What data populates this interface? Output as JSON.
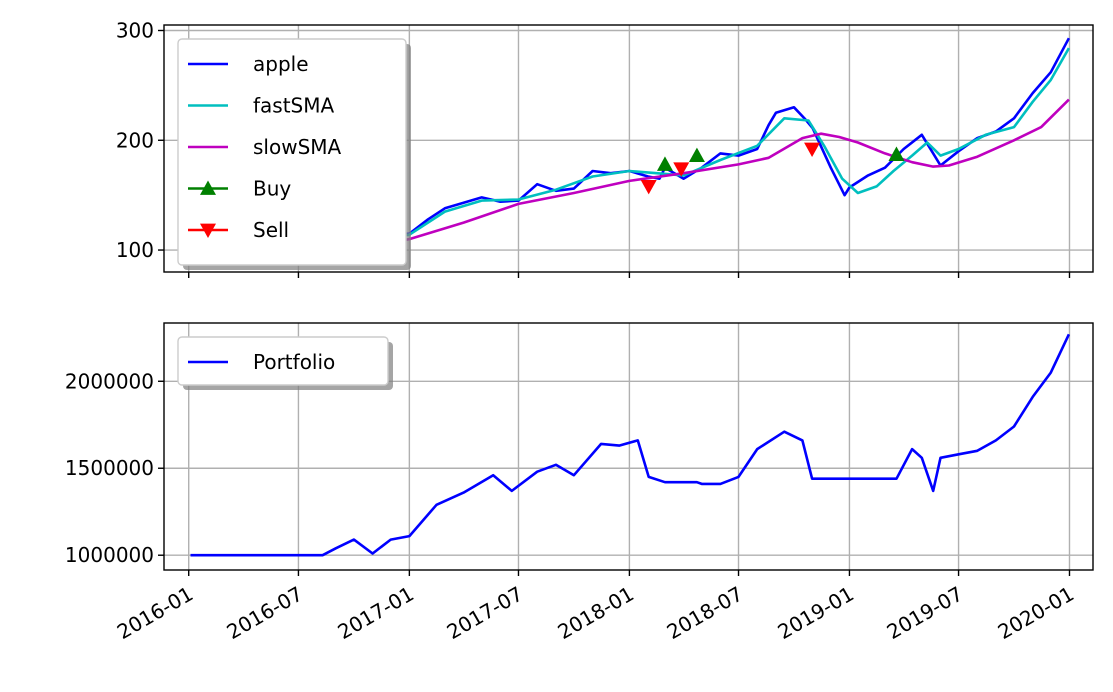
{
  "chart_data": [
    {
      "type": "line",
      "title": "",
      "xlabel": "",
      "ylabel": "",
      "ylim": [
        80,
        305
      ],
      "yticks": [
        100,
        200,
        300
      ],
      "ytick_labels": [
        "100",
        "200",
        "300"
      ],
      "xlim": [
        "2015-11-21",
        "2020-02-09"
      ],
      "x_shared_with_lower": true,
      "grid": true,
      "legend": {
        "placement": "upper left",
        "entries": [
          "apple",
          "fastSMA",
          "slowSMA",
          "Buy",
          "Sell"
        ]
      },
      "series": [
        {
          "name": "apple",
          "color": "#0000ff",
          "x": [
            "2016-01-04",
            "2016-02-01",
            "2016-03-01",
            "2016-04-01",
            "2016-05-01",
            "2016-06-01",
            "2016-07-01",
            "2016-08-01",
            "2016-09-01",
            "2016-10-01",
            "2016-11-01",
            "2016-12-01",
            "2017-01-01",
            "2017-02-01",
            "2017-03-01",
            "2017-04-01",
            "2017-05-01",
            "2017-06-01",
            "2017-07-01",
            "2017-08-01",
            "2017-09-01",
            "2017-10-01",
            "2017-11-01",
            "2017-12-01",
            "2018-01-01",
            "2018-02-01",
            "2018-02-20",
            "2018-03-01",
            "2018-04-01",
            "2018-05-01",
            "2018-06-01",
            "2018-07-01",
            "2018-08-01",
            "2018-08-20",
            "2018-09-01",
            "2018-10-01",
            "2018-10-20",
            "2018-11-01",
            "2018-12-01",
            "2018-12-24",
            "2019-01-01",
            "2019-02-01",
            "2019-03-01",
            "2019-04-01",
            "2019-05-01",
            "2019-05-20",
            "2019-06-01",
            "2019-07-01",
            "2019-08-01",
            "2019-09-01",
            "2019-10-01",
            "2019-11-01",
            "2019-12-01",
            "2019-12-31"
          ],
          "values": [
            96,
            94,
            95,
            104,
            94,
            94,
            96,
            104,
            106,
            113,
            110,
            113,
            115,
            128,
            138,
            143,
            148,
            144,
            145,
            160,
            154,
            156,
            172,
            170,
            172,
            167,
            165,
            175,
            165,
            175,
            188,
            186,
            192,
            214,
            225,
            230,
            219,
            211,
            175,
            150,
            157,
            168,
            175,
            192,
            205,
            188,
            177,
            190,
            202,
            208,
            220,
            243,
            262,
            293
          ]
        },
        {
          "name": "fastSMA",
          "color": "#00bfbf",
          "x": [
            "2016-01-04",
            "2016-03-01",
            "2016-05-01",
            "2016-07-01",
            "2016-09-01",
            "2016-11-01",
            "2017-01-01",
            "2017-03-01",
            "2017-05-01",
            "2017-07-01",
            "2017-09-01",
            "2017-11-01",
            "2018-01-01",
            "2018-02-15",
            "2018-04-01",
            "2018-06-01",
            "2018-08-01",
            "2018-09-15",
            "2018-10-25",
            "2018-11-20",
            "2018-12-20",
            "2019-01-15",
            "2019-02-15",
            "2019-03-15",
            "2019-04-15",
            "2019-05-10",
            "2019-06-01",
            "2019-07-01",
            "2019-08-15",
            "2019-10-01",
            "2019-11-01",
            "2019-12-01",
            "2019-12-31"
          ],
          "values": [
            97,
            96,
            97,
            96,
            103,
            110,
            114,
            135,
            145,
            146,
            155,
            167,
            172,
            170,
            168,
            182,
            195,
            220,
            218,
            195,
            165,
            152,
            158,
            172,
            186,
            198,
            186,
            192,
            205,
            212,
            235,
            255,
            284
          ]
        },
        {
          "name": "slowSMA",
          "color": "#bf00bf",
          "x": [
            "2016-01-04",
            "2016-04-01",
            "2016-07-01",
            "2016-10-01",
            "2017-01-01",
            "2017-04-01",
            "2017-07-01",
            "2017-10-01",
            "2018-01-01",
            "2018-04-01",
            "2018-07-01",
            "2018-08-20",
            "2018-10-15",
            "2018-11-15",
            "2018-12-15",
            "2019-01-15",
            "2019-03-01",
            "2019-04-15",
            "2019-05-20",
            "2019-06-15",
            "2019-08-01",
            "2019-10-01",
            "2019-11-15",
            "2019-12-31"
          ],
          "values": [
            96,
            97,
            98,
            101,
            110,
            125,
            142,
            152,
            163,
            170,
            178,
            184,
            202,
            206,
            203,
            198,
            188,
            180,
            176,
            177,
            185,
            200,
            212,
            237
          ]
        }
      ],
      "markers": [
        {
          "name": "Buy",
          "color": "#008000",
          "symbol": "triangle-up",
          "x": [
            "2018-03-01",
            "2018-04-23",
            "2019-03-20"
          ],
          "values": [
            178,
            186,
            187
          ]
        },
        {
          "name": "Sell",
          "color": "#ff0000",
          "symbol": "triangle-down",
          "x": [
            "2018-02-02",
            "2018-03-28",
            "2018-10-31"
          ],
          "values": [
            158,
            174,
            192
          ]
        }
      ]
    },
    {
      "type": "line",
      "title": "",
      "xlabel": "",
      "ylabel": "",
      "ylim": [
        915000,
        2335000
      ],
      "yticks": [
        1000000,
        1500000,
        2000000
      ],
      "ytick_labels": [
        "1000000",
        "1500000",
        "2000000"
      ],
      "xlim": [
        "2015-11-21",
        "2020-02-09"
      ],
      "xticks": [
        "2016-01-01",
        "2016-07-01",
        "2017-01-01",
        "2017-07-01",
        "2018-01-01",
        "2018-07-01",
        "2019-01-01",
        "2019-07-01",
        "2020-01-01"
      ],
      "xtick_labels": [
        "2016-01",
        "2016-07",
        "2017-01",
        "2017-07",
        "2018-01",
        "2018-07",
        "2019-01",
        "2019-07",
        "2020-01"
      ],
      "grid": true,
      "legend": {
        "placement": "upper left",
        "entries": [
          "Portfolio"
        ]
      },
      "series": [
        {
          "name": "Portfolio",
          "color": "#0000ff",
          "x": [
            "2016-01-04",
            "2016-07-25",
            "2016-08-10",
            "2016-09-01",
            "2016-10-01",
            "2016-11-01",
            "2016-12-01",
            "2017-01-01",
            "2017-02-15",
            "2017-04-01",
            "2017-05-20",
            "2017-06-20",
            "2017-08-01",
            "2017-09-01",
            "2017-10-01",
            "2017-11-15",
            "2017-12-15",
            "2018-01-15",
            "2018-02-02",
            "2018-03-01",
            "2018-03-28",
            "2018-04-23",
            "2018-05-01",
            "2018-06-01",
            "2018-07-01",
            "2018-08-01",
            "2018-09-15",
            "2018-10-15",
            "2018-10-31",
            "2019-03-20",
            "2019-04-15",
            "2019-05-01",
            "2019-05-20",
            "2019-06-01",
            "2019-07-01",
            "2019-08-01",
            "2019-09-01",
            "2019-10-01",
            "2019-11-01",
            "2019-12-01",
            "2019-12-31"
          ],
          "values": [
            1000000,
            1000000,
            1000000,
            1040000,
            1090000,
            1010000,
            1090000,
            1110000,
            1290000,
            1360000,
            1460000,
            1370000,
            1480000,
            1520000,
            1460000,
            1640000,
            1630000,
            1660000,
            1450000,
            1420000,
            1420000,
            1420000,
            1410000,
            1410000,
            1450000,
            1610000,
            1710000,
            1660000,
            1440000,
            1440000,
            1610000,
            1560000,
            1370000,
            1560000,
            1580000,
            1600000,
            1660000,
            1740000,
            1910000,
            2050000,
            2270000
          ]
        }
      ]
    }
  ]
}
